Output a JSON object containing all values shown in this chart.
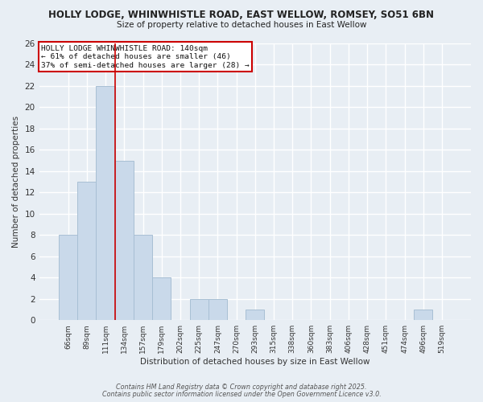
{
  "title_line1": "HOLLY LODGE, WHINWHISTLE ROAD, EAST WELLOW, ROMSEY, SO51 6BN",
  "title_line2": "Size of property relative to detached houses in East Wellow",
  "xlabel": "Distribution of detached houses by size in East Wellow",
  "ylabel": "Number of detached properties",
  "bar_labels": [
    "66sqm",
    "89sqm",
    "111sqm",
    "134sqm",
    "157sqm",
    "179sqm",
    "202sqm",
    "225sqm",
    "247sqm",
    "270sqm",
    "293sqm",
    "315sqm",
    "338sqm",
    "360sqm",
    "383sqm",
    "406sqm",
    "428sqm",
    "451sqm",
    "474sqm",
    "496sqm",
    "519sqm"
  ],
  "bar_values": [
    8,
    13,
    22,
    15,
    8,
    4,
    0,
    2,
    2,
    0,
    1,
    0,
    0,
    0,
    0,
    0,
    0,
    0,
    0,
    1,
    0
  ],
  "bar_color": "#c9d9ea",
  "bar_edgecolor": "#a8bfd4",
  "vline_x_idx": 3,
  "vline_color": "#cc0000",
  "ylim": [
    0,
    26
  ],
  "yticks": [
    0,
    2,
    4,
    6,
    8,
    10,
    12,
    14,
    16,
    18,
    20,
    22,
    24,
    26
  ],
  "annotation_title": "HOLLY LODGE WHINWHISTLE ROAD: 140sqm",
  "annotation_line2": "← 61% of detached houses are smaller (46)",
  "annotation_line3": "37% of semi-detached houses are larger (28) →",
  "annotation_box_color": "#ffffff",
  "annotation_box_edgecolor": "#cc0000",
  "bg_color": "#e8eef4",
  "plot_bg_color": "#e8eef4",
  "grid_color": "#ffffff",
  "footer1": "Contains HM Land Registry data © Crown copyright and database right 2025.",
  "footer2": "Contains public sector information licensed under the Open Government Licence v3.0."
}
